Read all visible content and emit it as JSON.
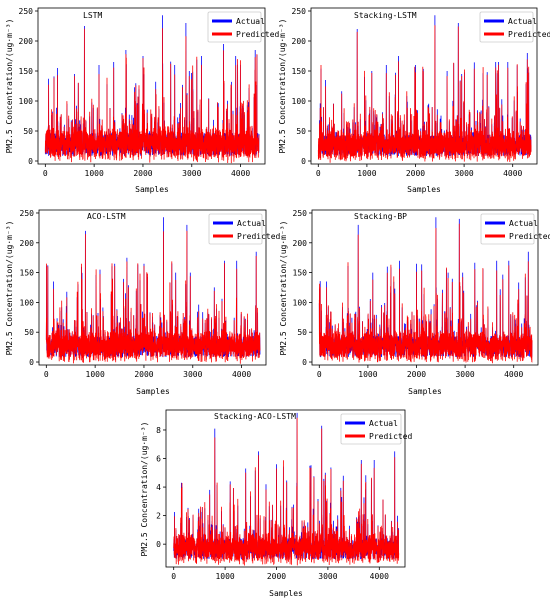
{
  "chart_data": [
    {
      "type": "line",
      "title": "LSTM",
      "xlabel": "Samples",
      "ylabel": "PM2.5 Concentration/(ug·m⁻³)",
      "xlim": [
        -150,
        4500
      ],
      "ylim": [
        -5,
        255
      ],
      "xticks": [
        0,
        1000,
        2000,
        3000,
        4000
      ],
      "yticks": [
        0,
        50,
        100,
        150,
        200,
        250
      ],
      "legend": "top-right",
      "series": [
        {
          "name": "Actual",
          "color": "#0000ff"
        },
        {
          "name": "Predicted",
          "color": "#ff0000"
        }
      ],
      "n_samples": 4380,
      "base_range": [
        5,
        75
      ],
      "peaks": [
        [
          800,
          225
        ],
        [
          2400,
          243
        ],
        [
          2880,
          230
        ],
        [
          3200,
          175
        ],
        [
          4300,
          185
        ],
        [
          1650,
          185
        ],
        [
          2000,
          175
        ],
        [
          3650,
          195
        ],
        [
          1400,
          165
        ],
        [
          2950,
          150
        ],
        [
          1100,
          160
        ],
        [
          600,
          145
        ],
        [
          3900,
          175
        ],
        [
          2650,
          160
        ],
        [
          250,
          155
        ]
      ]
    },
    {
      "type": "line",
      "title": "Stacking-LSTM",
      "xlabel": "Samples",
      "ylabel": "PM2.5 Concentration/(ug·m⁻³)",
      "xlim": [
        -150,
        4500
      ],
      "ylim": [
        -5,
        255
      ],
      "xticks": [
        0,
        1000,
        2000,
        3000,
        4000
      ],
      "yticks": [
        0,
        50,
        100,
        150,
        200,
        250
      ],
      "legend": "top-right",
      "series": [
        {
          "name": "Actual",
          "color": "#0000ff"
        },
        {
          "name": "Predicted",
          "color": "#ff0000"
        }
      ],
      "n_samples": 4380,
      "base_range": [
        5,
        70
      ],
      "peaks": [
        [
          800,
          220
        ],
        [
          2400,
          243
        ],
        [
          2880,
          230
        ],
        [
          3650,
          165
        ],
        [
          4300,
          180
        ],
        [
          1650,
          175
        ],
        [
          1400,
          160
        ],
        [
          2000,
          160
        ],
        [
          2950,
          145
        ],
        [
          150,
          135
        ],
        [
          1100,
          150
        ],
        [
          3900,
          165
        ],
        [
          2650,
          150
        ]
      ]
    },
    {
      "type": "line",
      "title": "ACO-LSTM",
      "xlabel": "Samples",
      "ylabel": "PM2.5 Concentration/(ug·m⁻³)",
      "xlim": [
        -150,
        4500
      ],
      "ylim": [
        -5,
        255
      ],
      "xticks": [
        0,
        1000,
        2000,
        3000,
        4000
      ],
      "yticks": [
        0,
        50,
        100,
        150,
        200,
        250
      ],
      "legend": "top-right",
      "series": [
        {
          "name": "Actual",
          "color": "#0000ff"
        },
        {
          "name": "Predicted",
          "color": "#ff0000"
        }
      ],
      "n_samples": 4380,
      "base_range": [
        5,
        70
      ],
      "peaks": [
        [
          800,
          220
        ],
        [
          2400,
          243
        ],
        [
          2880,
          230
        ],
        [
          3650,
          170
        ],
        [
          4300,
          185
        ],
        [
          1650,
          175
        ],
        [
          1400,
          165
        ],
        [
          2000,
          165
        ],
        [
          2950,
          150
        ],
        [
          150,
          135
        ],
        [
          1100,
          155
        ],
        [
          3900,
          170
        ],
        [
          2650,
          150
        ]
      ]
    },
    {
      "type": "line",
      "title": "Stacking-BP",
      "xlabel": "Samples",
      "ylabel": "PM2.5 Concentration/(ug·m⁻³)",
      "xlim": [
        -150,
        4500
      ],
      "ylim": [
        -5,
        255
      ],
      "xticks": [
        0,
        1000,
        2000,
        3000,
        4000
      ],
      "yticks": [
        0,
        50,
        100,
        150,
        200,
        250
      ],
      "legend": "top-right",
      "series": [
        {
          "name": "Actual",
          "color": "#0000ff"
        },
        {
          "name": "Predicted",
          "color": "#ff0000"
        }
      ],
      "n_samples": 4380,
      "base_range": [
        5,
        70
      ],
      "peaks": [
        [
          800,
          230
        ],
        [
          2400,
          243
        ],
        [
          2880,
          240
        ],
        [
          3650,
          170
        ],
        [
          4300,
          185
        ],
        [
          1650,
          170
        ],
        [
          1400,
          160
        ],
        [
          2000,
          165
        ],
        [
          2950,
          150
        ],
        [
          150,
          135
        ],
        [
          1100,
          150
        ],
        [
          3900,
          170
        ],
        [
          2650,
          150
        ]
      ]
    },
    {
      "type": "line",
      "title": "Stacking-ACO-LSTM",
      "xlabel": "Samples",
      "ylabel": "PM2.5 Concentration/(ug·m⁻³)",
      "xlim": [
        -150,
        4500
      ],
      "ylim": [
        -1.6,
        9.4
      ],
      "xticks": [
        0,
        1000,
        2000,
        3000,
        4000
      ],
      "yticks": [
        0,
        2,
        4,
        6,
        8
      ],
      "legend": "top-right",
      "series": [
        {
          "name": "Actual",
          "color": "#0000ff"
        },
        {
          "name": "Predicted",
          "color": "#ff0000"
        }
      ],
      "n_samples": 4380,
      "base_range": [
        -1.2,
        1.5
      ],
      "peaks": [
        [
          800,
          8.1
        ],
        [
          2400,
          9.2
        ],
        [
          2880,
          8.3
        ],
        [
          3650,
          5.9
        ],
        [
          4300,
          6.5
        ],
        [
          1650,
          6.5
        ],
        [
          1400,
          5.3
        ],
        [
          2000,
          5.6
        ],
        [
          2950,
          5.0
        ],
        [
          150,
          4.3
        ],
        [
          1100,
          4.4
        ],
        [
          3900,
          5.9
        ],
        [
          2650,
          5.5
        ],
        [
          700,
          3.8
        ],
        [
          3300,
          4.8
        ]
      ]
    }
  ]
}
